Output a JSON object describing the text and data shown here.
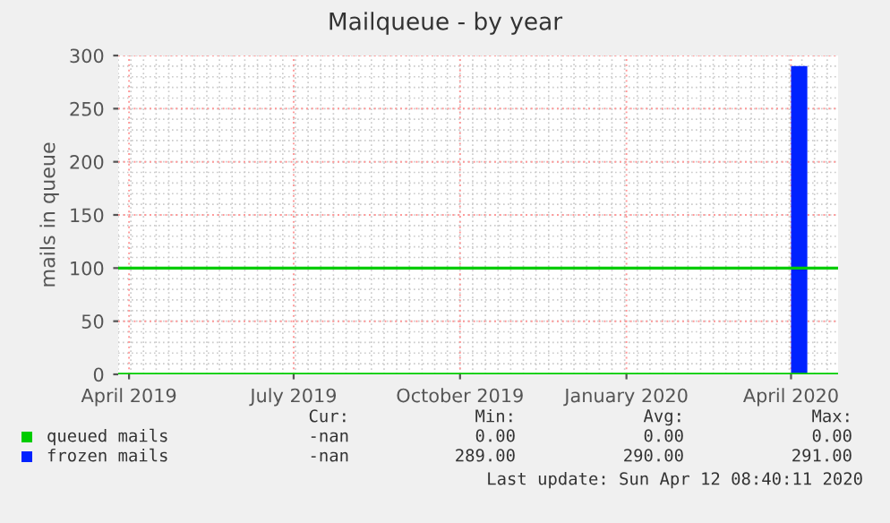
{
  "chart_data": {
    "type": "area",
    "title": "Mailqueue - by year",
    "ylabel": "mails in queue",
    "xlim": [
      "2019-03-26",
      "2020-04-27"
    ],
    "ylim": [
      0,
      300
    ],
    "yticks": [
      0,
      50,
      100,
      150,
      200,
      250,
      300
    ],
    "xticks": [
      {
        "value": "2019-04-01",
        "label": "April 2019"
      },
      {
        "value": "2019-07-01",
        "label": "July 2019"
      },
      {
        "value": "2019-10-01",
        "label": "October 2019"
      },
      {
        "value": "2020-01-01",
        "label": "January 2020"
      },
      {
        "value": "2020-04-01",
        "label": "April 2020"
      }
    ],
    "series": [
      {
        "name": "queued mails",
        "type": "line",
        "color": "#00cc00",
        "x": [
          "2019-03-26",
          "2020-04-27"
        ],
        "values": [
          0,
          0
        ]
      },
      {
        "name": "frozen mails",
        "color": "#0022ff",
        "x": [
          "2020-04-01",
          "2020-04-10"
        ],
        "values": [
          290,
          290
        ]
      }
    ],
    "ref_lines": [
      {
        "axis": "y",
        "value": 100,
        "color": "#00cc00"
      }
    ],
    "grid": true,
    "legend": "bottom",
    "annotations": [
      "Cur:",
      "Min:",
      "Avg:",
      "Max:",
      "-nan",
      "0.00",
      "0.00",
      "0.00",
      "-nan",
      "289.00",
      "290.00",
      "291.00",
      "Last update: Sun Apr 12 08:40:11 2020"
    ]
  }
}
